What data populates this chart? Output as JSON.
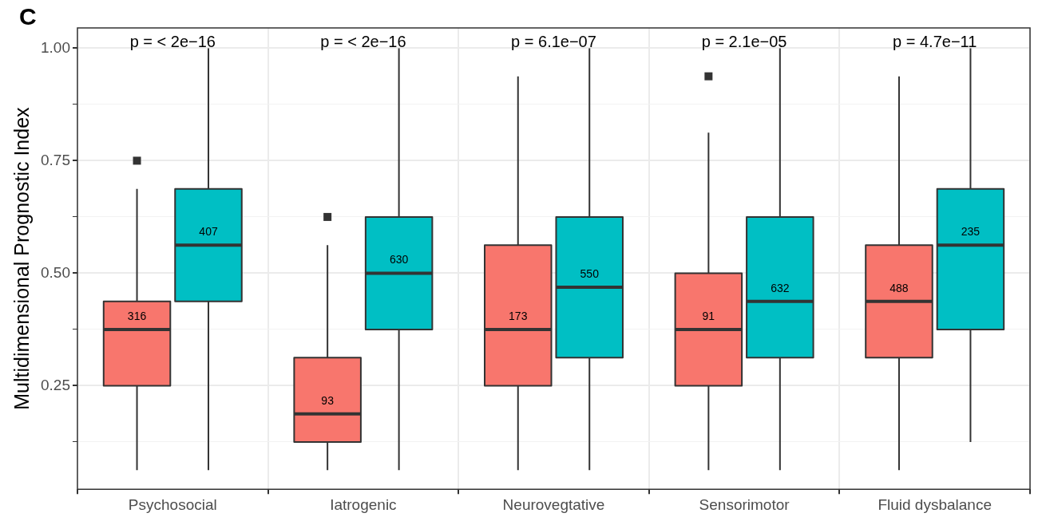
{
  "chart_data": {
    "type": "box",
    "ylabel": "Multidimensional Prognostic Index",
    "categories": [
      "Psychosocial",
      "Iatrogenic",
      "Neurovegtative",
      "Sensorimotor",
      "Fluid dysbalance"
    ],
    "ylim": [
      0.02,
      1.045
    ],
    "yticks": [
      {
        "value": 0.125,
        "label": null
      },
      0.25,
      {
        "value": 0.375,
        "label": null
      },
      {
        "value": 0.5,
        "label": "0.50"
      },
      {
        "value": 0.625,
        "label": null
      },
      0.75,
      {
        "value": 0.875,
        "label": null
      },
      {
        "value": 1.0,
        "label": "1.00"
      }
    ],
    "grid": true,
    "legend": false,
    "series": [
      {
        "color": "#f8766d",
        "value_labels": [
          "316",
          "93",
          "173",
          "91",
          "488"
        ],
        "boxes": [
          {
            "low": 0.0625,
            "q1": 0.25,
            "median": 0.375,
            "q3": 0.4375,
            "high": 0.6875,
            "outliers": [
              0.75
            ]
          },
          {
            "low": 0.0625,
            "q1": 0.125,
            "median": 0.1875,
            "q3": 0.3125,
            "high": 0.5625,
            "outliers": [
              0.625
            ]
          },
          {
            "low": 0.0625,
            "q1": 0.25,
            "median": 0.375,
            "q3": 0.5625,
            "high": 0.9375
          },
          {
            "low": 0.0625,
            "q1": 0.25,
            "median": 0.375,
            "q3": 0.5,
            "high": 0.8125,
            "outliers": [
              0.9375
            ]
          },
          {
            "low": 0.0625,
            "q1": 0.3125,
            "median": 0.4375,
            "q3": 0.5625,
            "high": 0.9375
          }
        ]
      },
      {
        "color": "#00bfc4",
        "value_labels": [
          "407",
          "630",
          "550",
          "632",
          "235"
        ],
        "boxes": [
          {
            "low": 0.0625,
            "q1": 0.4375,
            "median": 0.5625,
            "q3": 0.6875,
            "high": 1.0
          },
          {
            "low": 0.0625,
            "q1": 0.375,
            "median": 0.5,
            "q3": 0.625,
            "high": 1.0
          },
          {
            "low": 0.0625,
            "q1": 0.3125,
            "median": 0.46875,
            "q3": 0.625,
            "high": 1.0
          },
          {
            "low": 0.0625,
            "q1": 0.3125,
            "median": 0.4375,
            "q3": 0.625,
            "high": 1.0
          },
          {
            "low": 0.125,
            "q1": 0.375,
            "median": 0.5625,
            "q3": 0.6875,
            "high": 1.0
          }
        ]
      }
    ],
    "annotations": [
      "C",
      "p = < 2e−16",
      "p = < 2e−16",
      "p = 6.1e−07",
      "p = 2.1e−05",
      "p = 4.7e−11"
    ]
  }
}
